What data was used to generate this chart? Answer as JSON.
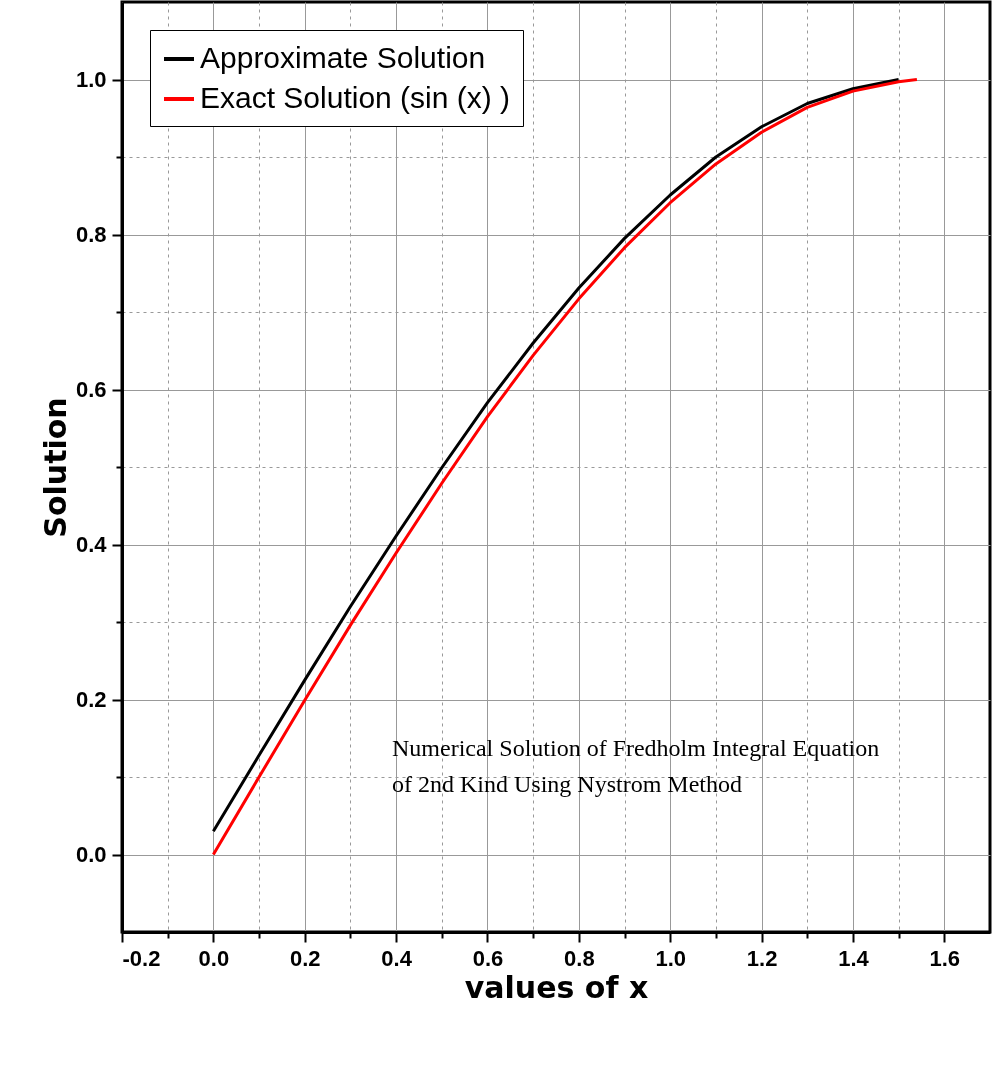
{
  "chart_data": {
    "type": "line",
    "xlabel": "values of x",
    "ylabel": "Solution",
    "xlim": [
      -0.2,
      1.7
    ],
    "ylim": [
      -0.1,
      1.1
    ],
    "xticks": [
      -0.2,
      {
        "value": -0.1,
        "label": null
      },
      {
        "value": 0,
        "label": "0.0"
      },
      {
        "value": 0.1,
        "label": null
      },
      0.2,
      {
        "value": 0.3,
        "label": null
      },
      0.4,
      {
        "value": 0.5,
        "label": null
      },
      0.6,
      {
        "value": 0.7,
        "label": null
      },
      0.8,
      {
        "value": 0.9,
        "label": null
      },
      {
        "value": 1,
        "label": "1.0"
      },
      {
        "value": 1.1,
        "label": null
      },
      1.2,
      {
        "value": 1.3,
        "label": null
      },
      1.4,
      {
        "value": 1.5,
        "label": null
      },
      1.6
    ],
    "yticks": [
      {
        "value": 0,
        "label": "0.0"
      },
      {
        "value": 0.1,
        "label": null
      },
      0.2,
      {
        "value": 0.3,
        "label": null
      },
      0.4,
      {
        "value": 0.5,
        "label": null
      },
      0.6,
      {
        "value": 0.7,
        "label": null
      },
      0.8,
      {
        "value": 0.9,
        "label": null
      },
      {
        "value": 1,
        "label": "1.0"
      }
    ],
    "x": [
      0,
      0.1,
      0.2,
      0.3,
      0.4,
      0.5,
      0.6,
      0.7,
      0.8,
      0.9,
      1.0,
      1.1,
      1.2,
      1.3,
      1.4,
      1.5,
      1.54
    ],
    "series": [
      {
        "name": "Approximate Solution",
        "color": "#000000",
        "x": [
          0,
          0.1,
          0.2,
          0.3,
          0.4,
          0.5,
          0.6,
          0.7,
          0.8,
          0.9,
          1.0,
          1.1,
          1.2,
          1.3,
          1.4,
          1.5
        ],
        "values": [
          0.03,
          0.128,
          0.225,
          0.32,
          0.411,
          0.499,
          0.583,
          0.66,
          0.731,
          0.795,
          0.851,
          0.9,
          0.939,
          0.969,
          0.988,
          1.0
        ]
      },
      {
        "name": "Exact Solution (sin (x) )",
        "color": "#ff0000",
        "values": [
          0,
          0.1,
          0.199,
          0.296,
          0.389,
          0.479,
          0.565,
          0.644,
          0.717,
          0.783,
          0.841,
          0.891,
          0.932,
          0.964,
          0.985,
          0.997,
          1.0
        ]
      }
    ],
    "annotations": [
      "Numerical Solution of  Fredholm Integral Equation\nof   2nd Kind  Using Nystrom Method"
    ],
    "grid": true,
    "legend": "top left",
    "marker": "none",
    "line_style": "solid"
  }
}
